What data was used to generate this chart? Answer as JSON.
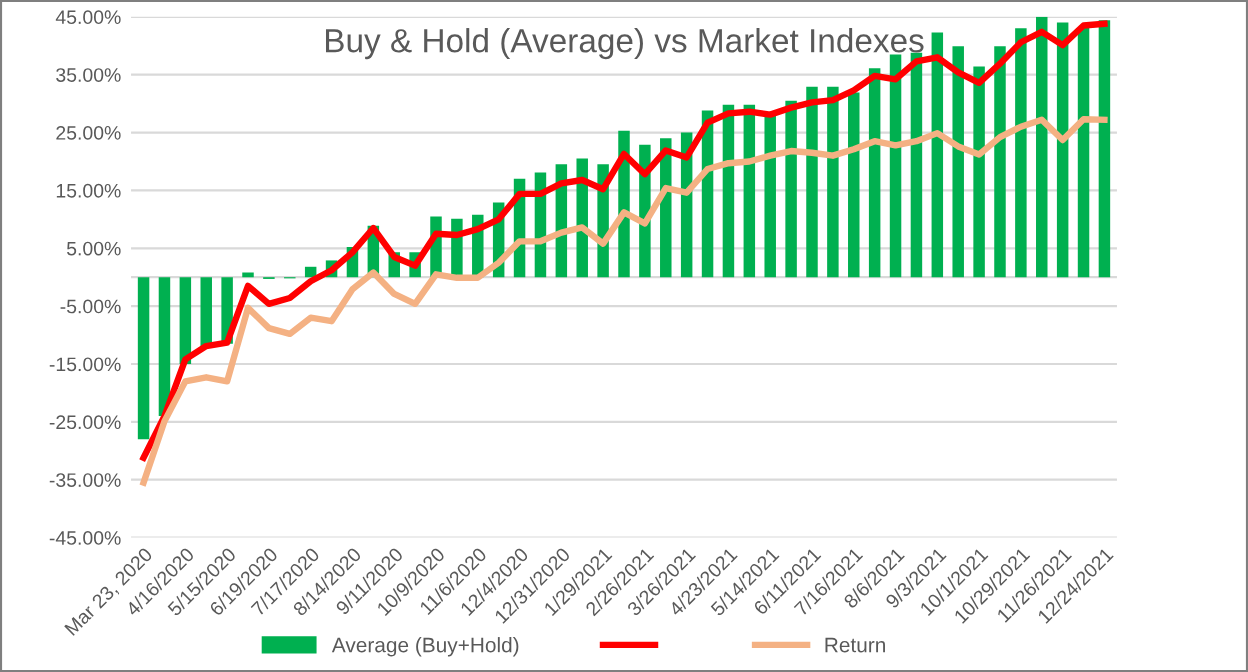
{
  "chart_data": {
    "type": "bar",
    "title": "Buy & Hold (Average) vs Market Indexes",
    "categories": [
      "Mar 23, 2020",
      null,
      "4/16/2020",
      null,
      "5/15/2020",
      null,
      "6/19/2020",
      null,
      "7/17/2020",
      null,
      "8/14/2020",
      null,
      "9/11/2020",
      null,
      "10/9/2020",
      null,
      "11/6/2020",
      null,
      "12/4/2020",
      null,
      "12/31/2020",
      null,
      "1/29/2021",
      null,
      "2/26/2021",
      null,
      "3/26/2021",
      null,
      "4/23/2021",
      null,
      "5/14/2021",
      null,
      "6/11/2021",
      null,
      "7/16/2021",
      null,
      "8/6/2021",
      null,
      "9/3/2021",
      null,
      "10/1/2021",
      null,
      "10/29/2021",
      null,
      "11/26/2021",
      null,
      "12/24/2021"
    ],
    "series": [
      {
        "name": "Average (Buy+Hold)",
        "color": "#00b050",
        "values": [
          -28,
          -24,
          -15,
          -12,
          -11.5,
          0.8,
          -0.3,
          -0.2,
          1.8,
          2.9,
          5.2,
          8.9,
          4.3,
          4.3,
          10.5,
          10.1,
          10.8,
          12.9,
          17.0,
          18.1,
          19.5,
          20.5,
          19.5,
          25.3,
          22.9,
          24.0,
          25.0,
          28.8,
          29.8,
          29.8,
          27.9,
          30.5,
          32.9,
          32.9,
          31.9,
          36.1,
          38.5,
          38.8,
          42.3,
          39.9,
          36.4,
          39.9,
          43.0,
          45.0,
          44.0,
          43.1,
          44.4
        ]
      },
      {
        "type": "line",
        "color": "#ff0000",
        "values": [
          -31.2,
          -24,
          -14.2,
          -11.9,
          -11.3,
          -1.5,
          -4.6,
          -3.6,
          -0.7,
          1.2,
          4.3,
          8.5,
          3.5,
          2.0,
          7.5,
          7.3,
          8.3,
          10.0,
          14.4,
          14.4,
          16.2,
          16.8,
          15.2,
          21.3,
          17.8,
          21.9,
          20.7,
          26.7,
          28.3,
          28.6,
          28.1,
          29.3,
          30.2,
          30.6,
          32.3,
          34.8,
          34.2,
          37.3,
          38.0,
          35.4,
          33.6,
          36.9,
          40.6,
          42.4,
          40.1,
          43.5,
          43.8
        ]
      },
      {
        "name": "Return",
        "type": "line",
        "color": "#f4b183",
        "values": [
          -35.5,
          -24.9,
          -18.0,
          -17.3,
          -18.0,
          -5.3,
          -8.8,
          -9.8,
          -7.0,
          -7.6,
          -2.1,
          0.8,
          -2.9,
          -4.6,
          0.5,
          -0.1,
          -0.1,
          2.5,
          6.2,
          6.2,
          7.7,
          8.6,
          5.8,
          11.2,
          9.3,
          15.4,
          14.6,
          18.7,
          19.7,
          20.0,
          21.0,
          21.8,
          21.5,
          21.0,
          22.1,
          23.5,
          22.8,
          23.5,
          24.9,
          22.6,
          21.2,
          24.2,
          26.0,
          27.2,
          23.7,
          27.3,
          27.2
        ]
      }
    ],
    "ylim": [
      -45,
      45
    ],
    "yticks": [
      {
        "value": -45,
        "label": "-45.00%"
      },
      {
        "value": -35,
        "label": "-35.00%"
      },
      {
        "value": -25,
        "label": "-25.00%"
      },
      {
        "value": -15,
        "label": "-15.00%"
      },
      {
        "value": -5,
        "label": "-5.00%"
      },
      {
        "value": 5,
        "label": "5.00%"
      },
      {
        "value": 15,
        "label": "15.00%"
      },
      {
        "value": 25,
        "label": "25.00%"
      },
      {
        "value": 35,
        "label": "35.00%"
      },
      {
        "value": 45,
        "label": "45.00%"
      }
    ],
    "grid": "y",
    "legend": "bottom"
  }
}
